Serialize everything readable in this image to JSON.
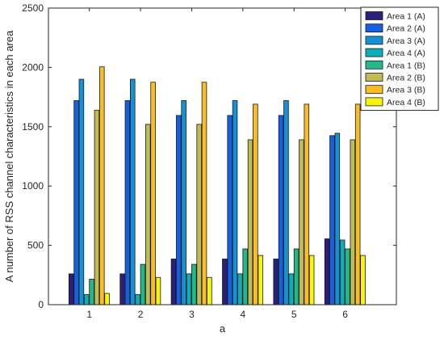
{
  "chart_data": {
    "type": "bar",
    "xlabel": "a",
    "ylabel": "A number of RSS channel characteristics in each area",
    "ylim": [
      0,
      2500
    ],
    "yticks": [
      0,
      500,
      1000,
      1500,
      2000,
      2500
    ],
    "categories": [
      "1",
      "2",
      "3",
      "4",
      "5",
      "6"
    ],
    "grid": false,
    "legend_position": "top-right",
    "series": [
      {
        "name": "Area 1 (A)",
        "color": "#2b1f7c",
        "values": [
          260,
          260,
          385,
          385,
          385,
          555
        ]
      },
      {
        "name": "Area 2 (A)",
        "color": "#1560e0",
        "values": [
          1720,
          1720,
          1595,
          1595,
          1595,
          1425
        ]
      },
      {
        "name": "Area 3 (A)",
        "color": "#1591d6",
        "values": [
          1900,
          1900,
          1720,
          1720,
          1720,
          1445
        ]
      },
      {
        "name": "Area 4 (A)",
        "color": "#0fadb8",
        "values": [
          85,
          85,
          260,
          260,
          260,
          545
        ]
      },
      {
        "name": "Area 1 (B)",
        "color": "#22b88a",
        "values": [
          215,
          340,
          340,
          470,
          470,
          470
        ]
      },
      {
        "name": "Area 2 (B)",
        "color": "#bfbb57",
        "values": [
          1640,
          1520,
          1520,
          1390,
          1390,
          1390
        ]
      },
      {
        "name": "Area 3 (B)",
        "color": "#fbbd25",
        "values": [
          2005,
          1875,
          1875,
          1690,
          1690,
          1690
        ]
      },
      {
        "name": "Area 4 (B)",
        "color": "#f7f50e",
        "values": [
          95,
          230,
          230,
          415,
          415,
          415
        ]
      }
    ]
  }
}
